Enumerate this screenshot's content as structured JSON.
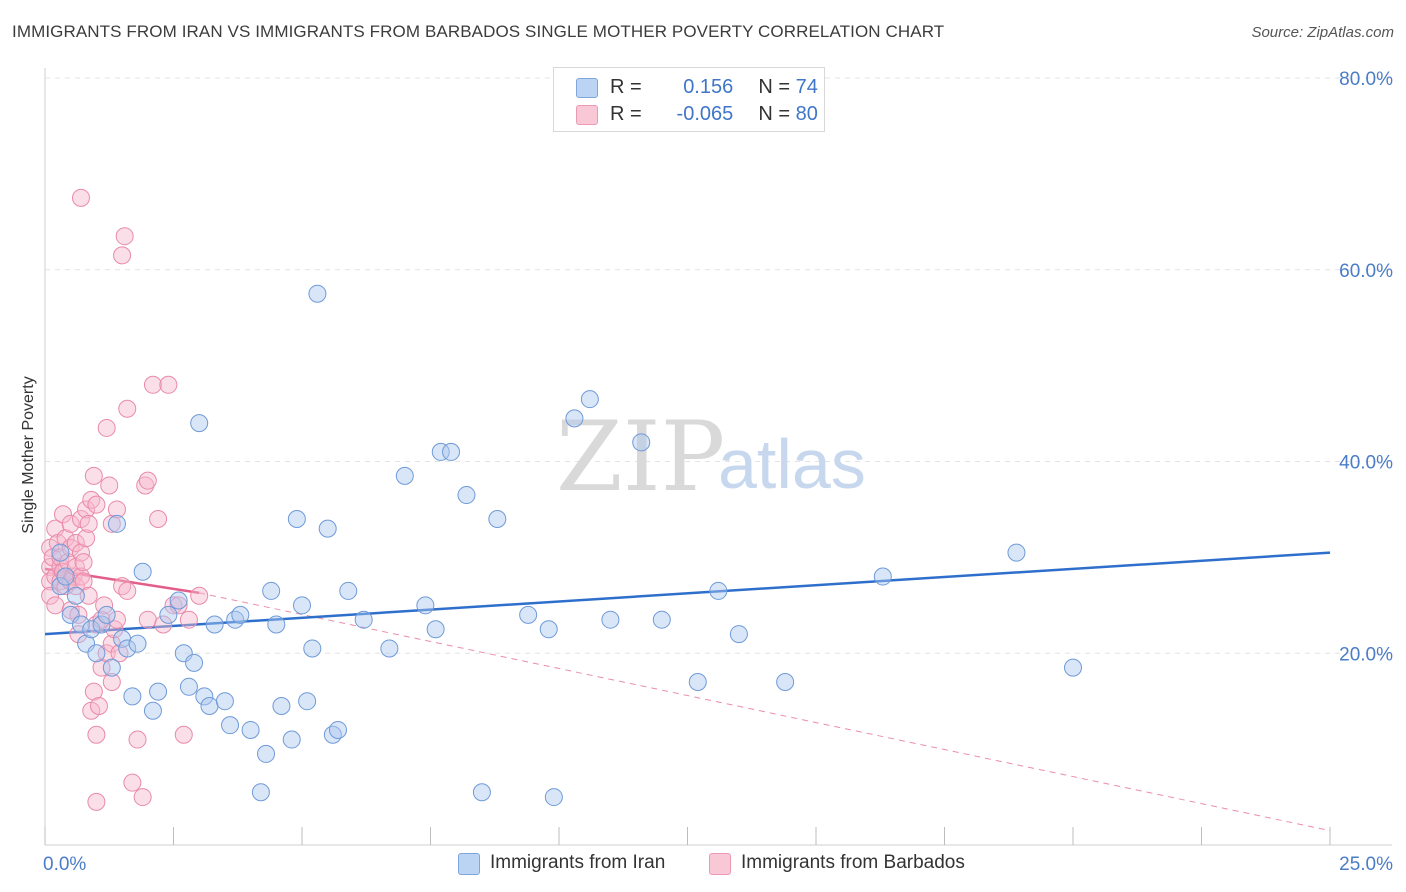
{
  "title": "IMMIGRANTS FROM IRAN VS IMMIGRANTS FROM BARBADOS SINGLE MOTHER POVERTY CORRELATION CHART",
  "source": "Source: ZipAtlas.com",
  "watermark": {
    "zip": "ZIP",
    "atlas": "atlas"
  },
  "legend": {
    "iran": {
      "r_label": "R =",
      "r_value": "0.156",
      "n_label": "N =",
      "n_value": "74"
    },
    "barbados": {
      "r_label": "R =",
      "r_value": "-0.065",
      "n_label": "N =",
      "n_value": "80"
    }
  },
  "colors": {
    "iran_fill": "#aac8f0",
    "iran_stroke": "#6f9ad8",
    "iran_line": "#2f6fcc",
    "barbados_fill": "#f6b9cc",
    "barbados_stroke": "#e98aa9",
    "barbados_line": "#e25d88",
    "grid": "#e4e4e4",
    "tick": "#4a7cc7"
  },
  "chart_data": {
    "type": "scatter",
    "title": "IMMIGRANTS FROM IRAN VS IMMIGRANTS FROM BARBADOS SINGLE MOTHER POVERTY CORRELATION CHART",
    "xlabel": "",
    "ylabel": "Single Mother Poverty",
    "xlim": [
      0,
      25
    ],
    "ylim": [
      0,
      80
    ],
    "x_tick_labels": [
      "0.0%",
      "25.0%"
    ],
    "y_ticks": [
      20,
      40,
      60,
      80
    ],
    "y_tick_labels": [
      "20.0%",
      "40.0%",
      "60.0%",
      "80.0%"
    ],
    "series": [
      {
        "name": "Immigrants from Iran",
        "r": 0.156,
        "n": 74,
        "trend": {
          "x": [
            0,
            25
          ],
          "y": [
            22.0,
            30.5
          ],
          "style": "solid"
        },
        "points": [
          [
            0.3,
            27
          ],
          [
            0.3,
            30.5
          ],
          [
            0.4,
            28
          ],
          [
            0.5,
            24
          ],
          [
            0.6,
            26
          ],
          [
            0.7,
            23
          ],
          [
            0.8,
            21
          ],
          [
            0.9,
            22.5
          ],
          [
            1.0,
            20
          ],
          [
            1.1,
            23
          ],
          [
            1.2,
            24
          ],
          [
            1.3,
            18.5
          ],
          [
            1.4,
            33.5
          ],
          [
            1.5,
            21.5
          ],
          [
            1.6,
            20.5
          ],
          [
            1.7,
            15.5
          ],
          [
            1.8,
            21
          ],
          [
            1.9,
            28.5
          ],
          [
            2.1,
            14
          ],
          [
            2.2,
            16
          ],
          [
            2.4,
            24
          ],
          [
            2.6,
            25.5
          ],
          [
            2.7,
            20
          ],
          [
            2.8,
            16.5
          ],
          [
            2.9,
            19
          ],
          [
            3.0,
            44
          ],
          [
            3.1,
            15.5
          ],
          [
            3.2,
            14.5
          ],
          [
            3.3,
            23
          ],
          [
            3.5,
            15
          ],
          [
            3.6,
            12.5
          ],
          [
            3.7,
            23.5
          ],
          [
            3.8,
            24
          ],
          [
            4.0,
            12
          ],
          [
            4.2,
            5.5
          ],
          [
            4.3,
            9.5
          ],
          [
            4.4,
            26.5
          ],
          [
            4.6,
            14.5
          ],
          [
            4.8,
            11
          ],
          [
            4.9,
            34
          ],
          [
            5.0,
            25
          ],
          [
            5.1,
            15
          ],
          [
            5.2,
            20.5
          ],
          [
            5.3,
            57.5
          ],
          [
            5.5,
            33
          ],
          [
            5.6,
            11.5
          ],
          [
            5.7,
            12
          ],
          [
            5.9,
            26.5
          ],
          [
            6.2,
            23.5
          ],
          [
            6.7,
            20.5
          ],
          [
            7.0,
            38.5
          ],
          [
            7.4,
            25
          ],
          [
            7.6,
            22.5
          ],
          [
            7.7,
            41
          ],
          [
            7.9,
            41
          ],
          [
            8.2,
            36.5
          ],
          [
            8.5,
            5.5
          ],
          [
            8.8,
            34
          ],
          [
            9.4,
            24
          ],
          [
            9.8,
            22.5
          ],
          [
            9.9,
            5
          ],
          [
            10.3,
            44.5
          ],
          [
            10.6,
            46.5
          ],
          [
            11.0,
            23.5
          ],
          [
            11.6,
            42
          ],
          [
            12.0,
            23.5
          ],
          [
            12.7,
            17
          ],
          [
            13.1,
            26.5
          ],
          [
            13.5,
            22
          ],
          [
            14.4,
            17
          ],
          [
            16.3,
            28
          ],
          [
            18.9,
            30.5
          ],
          [
            20.0,
            18.5
          ],
          [
            4.5,
            23
          ]
        ]
      },
      {
        "name": "Immigrants from Barbados",
        "r": -0.065,
        "n": 80,
        "trend": {
          "x": [
            0,
            3
          ],
          "y": [
            28.8,
            26.3
          ],
          "style": "solid"
        },
        "trend_extended": {
          "x": [
            3,
            25
          ],
          "y": [
            26.3,
            1.5
          ],
          "style": "dashed"
        },
        "points": [
          [
            0.1,
            29
          ],
          [
            0.1,
            31
          ],
          [
            0.1,
            27.5
          ],
          [
            0.1,
            26
          ],
          [
            0.15,
            30
          ],
          [
            0.2,
            33
          ],
          [
            0.2,
            28
          ],
          [
            0.2,
            25
          ],
          [
            0.25,
            31.5
          ],
          [
            0.3,
            27.5
          ],
          [
            0.3,
            29
          ],
          [
            0.3,
            30
          ],
          [
            0.35,
            28.5
          ],
          [
            0.35,
            34.5
          ],
          [
            0.4,
            27
          ],
          [
            0.4,
            32
          ],
          [
            0.4,
            28
          ],
          [
            0.45,
            29.5
          ],
          [
            0.5,
            24.5
          ],
          [
            0.5,
            31
          ],
          [
            0.5,
            33.5
          ],
          [
            0.5,
            27.5
          ],
          [
            0.55,
            28
          ],
          [
            0.6,
            27
          ],
          [
            0.6,
            29
          ],
          [
            0.6,
            31.5
          ],
          [
            0.65,
            22
          ],
          [
            0.65,
            24
          ],
          [
            0.7,
            28
          ],
          [
            0.7,
            34
          ],
          [
            0.7,
            30.5
          ],
          [
            0.7,
            67.5
          ],
          [
            0.75,
            27.5
          ],
          [
            0.75,
            29.5
          ],
          [
            0.8,
            32
          ],
          [
            0.8,
            35
          ],
          [
            0.85,
            33.5
          ],
          [
            0.85,
            26
          ],
          [
            0.9,
            14
          ],
          [
            0.9,
            36
          ],
          [
            0.95,
            38.5
          ],
          [
            0.95,
            16
          ],
          [
            1.0,
            11.5
          ],
          [
            1.0,
            23
          ],
          [
            1.0,
            35.5
          ],
          [
            1.05,
            14.5
          ],
          [
            1.1,
            23.5
          ],
          [
            1.1,
            18.5
          ],
          [
            1.15,
            25
          ],
          [
            1.2,
            20
          ],
          [
            1.2,
            43.5
          ],
          [
            1.25,
            37.5
          ],
          [
            1.3,
            21
          ],
          [
            1.3,
            33.5
          ],
          [
            1.3,
            17
          ],
          [
            1.35,
            22.5
          ],
          [
            1.4,
            23.5
          ],
          [
            1.4,
            35
          ],
          [
            1.45,
            20
          ],
          [
            1.5,
            27
          ],
          [
            1.5,
            61.5
          ],
          [
            1.55,
            63.5
          ],
          [
            1.6,
            26.5
          ],
          [
            1.6,
            45.5
          ],
          [
            1.7,
            6.5
          ],
          [
            1.8,
            11
          ],
          [
            1.9,
            5
          ],
          [
            1.95,
            37.5
          ],
          [
            2.0,
            38
          ],
          [
            2.0,
            23.5
          ],
          [
            2.1,
            48
          ],
          [
            2.2,
            34
          ],
          [
            2.3,
            23
          ],
          [
            2.4,
            48
          ],
          [
            2.5,
            25
          ],
          [
            2.6,
            25
          ],
          [
            2.7,
            11.5
          ],
          [
            2.8,
            23.5
          ],
          [
            3.0,
            26
          ],
          [
            1.0,
            4.5
          ]
        ]
      }
    ]
  },
  "bottom_legend": {
    "iran_label": "Immigrants from Iran",
    "barbados_label": "Immigrants from Barbados"
  }
}
